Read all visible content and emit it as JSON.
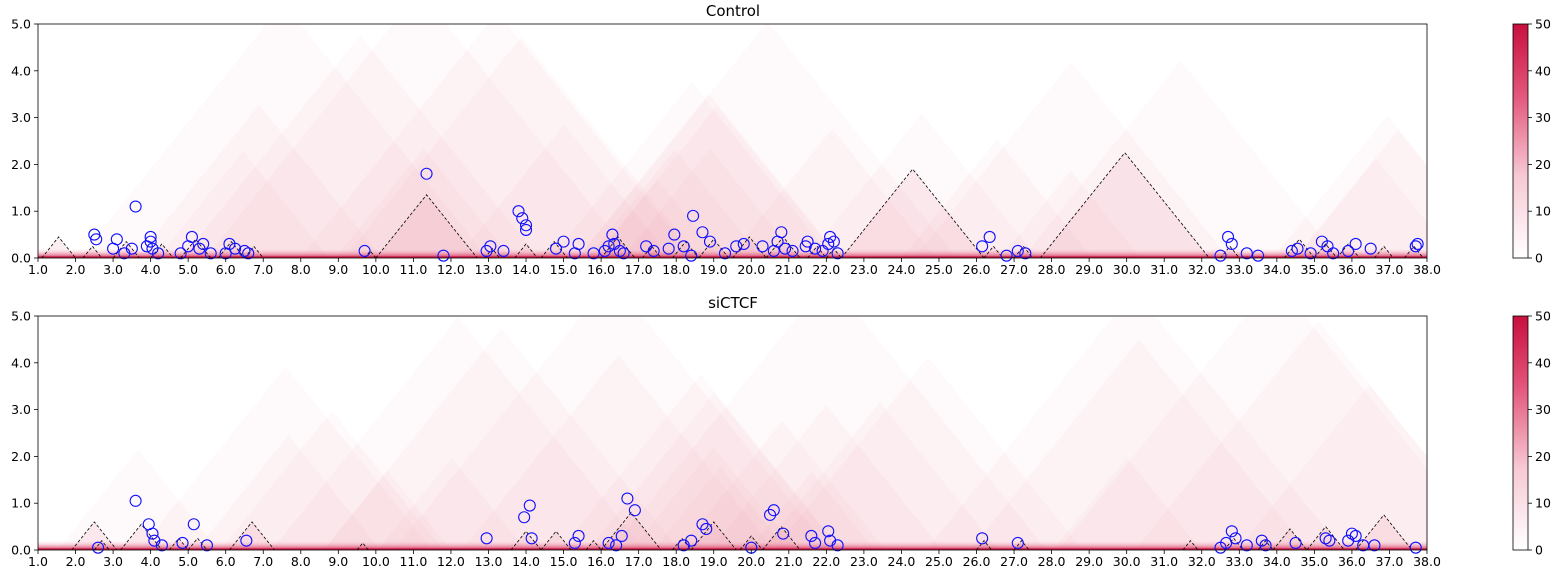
{
  "chart_data": [
    {
      "type": "heatmap",
      "title": "Control",
      "xlim": [
        1.0,
        38.0
      ],
      "ylim": [
        0.0,
        5.0
      ],
      "xticks": [
        "1.0",
        "2.0",
        "3.0",
        "4.0",
        "5.0",
        "6.0",
        "7.0",
        "8.0",
        "9.0",
        "10.0",
        "11.0",
        "12.0",
        "13.0",
        "14.0",
        "15.0",
        "16.0",
        "17.0",
        "18.0",
        "19.0",
        "20.0",
        "21.0",
        "22.0",
        "23.0",
        "24.0",
        "25.0",
        "26.0",
        "27.0",
        "28.0",
        "29.0",
        "30.0",
        "31.0",
        "32.0",
        "33.0",
        "34.0",
        "35.0",
        "36.0",
        "37.0",
        "38.0"
      ],
      "yticks": [
        "0.0",
        "1.0",
        "2.0",
        "3.0",
        "4.0",
        "5.0"
      ],
      "colorbar": {
        "min": 0,
        "max": 50,
        "ticks": [
          "0",
          "10",
          "20",
          "30",
          "40",
          "50"
        ],
        "low_color": "#ffffff",
        "high_color": "#c8103e"
      },
      "tads": [
        [
          1.1,
          2.0
        ],
        [
          2.2,
          2.7
        ],
        [
          3.0,
          3.7
        ],
        [
          4.0,
          4.6
        ],
        [
          4.8,
          5.6
        ],
        [
          5.8,
          6.5
        ],
        [
          6.5,
          7.0
        ],
        [
          9.7,
          10.0
        ],
        [
          10.0,
          12.7
        ],
        [
          12.9,
          13.3
        ],
        [
          13.7,
          14.3
        ],
        [
          14.4,
          15.1
        ],
        [
          16.0,
          16.9
        ],
        [
          17.1,
          17.6
        ],
        [
          17.9,
          18.6
        ],
        [
          18.6,
          19.4
        ],
        [
          19.5,
          20.4
        ],
        [
          20.4,
          21.3
        ],
        [
          21.5,
          22.0
        ],
        [
          22.0,
          22.4
        ],
        [
          22.4,
          26.2
        ],
        [
          26.2,
          26.7
        ],
        [
          27.0,
          27.5
        ],
        [
          27.7,
          32.2
        ],
        [
          32.5,
          33.0
        ],
        [
          34.2,
          35.0
        ],
        [
          35.0,
          35.6
        ],
        [
          35.6,
          36.2
        ],
        [
          36.6,
          37.1
        ],
        [
          37.4,
          37.9
        ]
      ],
      "loops": [
        [
          2.5,
          0.5
        ],
        [
          2.55,
          0.4
        ],
        [
          3.1,
          0.4
        ],
        [
          3.0,
          0.2
        ],
        [
          3.3,
          0.1
        ],
        [
          3.5,
          0.2
        ],
        [
          3.6,
          1.1
        ],
        [
          3.9,
          0.25
        ],
        [
          4.0,
          0.35
        ],
        [
          4.0,
          0.45
        ],
        [
          4.05,
          0.2
        ],
        [
          4.2,
          0.1
        ],
        [
          4.8,
          0.1
        ],
        [
          5.0,
          0.25
        ],
        [
          5.1,
          0.45
        ],
        [
          5.3,
          0.2
        ],
        [
          5.4,
          0.3
        ],
        [
          5.6,
          0.1
        ],
        [
          6.0,
          0.1
        ],
        [
          6.1,
          0.3
        ],
        [
          6.25,
          0.2
        ],
        [
          6.5,
          0.15
        ],
        [
          6.6,
          0.1
        ],
        [
          9.7,
          0.15
        ],
        [
          11.35,
          1.8
        ],
        [
          11.8,
          0.05
        ],
        [
          12.95,
          0.15
        ],
        [
          13.05,
          0.25
        ],
        [
          13.4,
          0.15
        ],
        [
          13.8,
          1.0
        ],
        [
          13.9,
          0.85
        ],
        [
          14.0,
          0.7
        ],
        [
          14.0,
          0.6
        ],
        [
          14.8,
          0.2
        ],
        [
          15.0,
          0.35
        ],
        [
          15.4,
          0.3
        ],
        [
          15.3,
          0.1
        ],
        [
          15.8,
          0.1
        ],
        [
          16.1,
          0.15
        ],
        [
          16.2,
          0.25
        ],
        [
          16.3,
          0.5
        ],
        [
          16.35,
          0.3
        ],
        [
          16.5,
          0.15
        ],
        [
          16.6,
          0.1
        ],
        [
          17.2,
          0.25
        ],
        [
          17.4,
          0.15
        ],
        [
          17.8,
          0.2
        ],
        [
          17.95,
          0.5
        ],
        [
          18.2,
          0.25
        ],
        [
          18.4,
          0.05
        ],
        [
          18.45,
          0.9
        ],
        [
          18.7,
          0.55
        ],
        [
          18.9,
          0.35
        ],
        [
          19.3,
          0.1
        ],
        [
          19.6,
          0.25
        ],
        [
          19.8,
          0.3
        ],
        [
          20.3,
          0.25
        ],
        [
          20.6,
          0.15
        ],
        [
          20.7,
          0.35
        ],
        [
          20.8,
          0.55
        ],
        [
          20.9,
          0.2
        ],
        [
          21.1,
          0.15
        ],
        [
          21.45,
          0.25
        ],
        [
          21.5,
          0.35
        ],
        [
          21.7,
          0.2
        ],
        [
          21.9,
          0.15
        ],
        [
          22.05,
          0.3
        ],
        [
          22.1,
          0.45
        ],
        [
          22.2,
          0.35
        ],
        [
          22.3,
          0.1
        ],
        [
          26.15,
          0.25
        ],
        [
          26.35,
          0.45
        ],
        [
          26.8,
          0.05
        ],
        [
          27.1,
          0.15
        ],
        [
          27.3,
          0.1
        ],
        [
          32.5,
          0.05
        ],
        [
          32.7,
          0.45
        ],
        [
          32.8,
          0.3
        ],
        [
          33.2,
          0.1
        ],
        [
          33.5,
          0.05
        ],
        [
          34.4,
          0.15
        ],
        [
          34.55,
          0.2
        ],
        [
          34.9,
          0.1
        ],
        [
          35.2,
          0.35
        ],
        [
          35.35,
          0.25
        ],
        [
          35.5,
          0.1
        ],
        [
          35.9,
          0.15
        ],
        [
          36.1,
          0.3
        ],
        [
          36.5,
          0.2
        ],
        [
          37.7,
          0.25
        ],
        [
          37.75,
          0.3
        ]
      ]
    },
    {
      "type": "heatmap",
      "title": "siCTCF",
      "xlim": [
        1.0,
        38.0
      ],
      "ylim": [
        0.0,
        5.0
      ],
      "xticks": [
        "1.0",
        "2.0",
        "3.0",
        "4.0",
        "5.0",
        "6.0",
        "7.0",
        "8.0",
        "9.0",
        "10.0",
        "11.0",
        "12.0",
        "13.0",
        "14.0",
        "15.0",
        "16.0",
        "17.0",
        "18.0",
        "19.0",
        "20.0",
        "21.0",
        "22.0",
        "23.0",
        "24.0",
        "25.0",
        "26.0",
        "27.0",
        "28.0",
        "29.0",
        "30.0",
        "31.0",
        "32.0",
        "33.0",
        "34.0",
        "35.0",
        "36.0",
        "37.0",
        "38.0"
      ],
      "yticks": [
        "0.0",
        "1.0",
        "2.0",
        "3.0",
        "4.0",
        "5.0"
      ],
      "colorbar": {
        "min": 0,
        "max": 50,
        "ticks": [
          "0",
          "10",
          "20",
          "30",
          "40",
          "50"
        ],
        "low_color": "#ffffff",
        "high_color": "#c8103e"
      },
      "tads": [
        [
          1.9,
          3.1
        ],
        [
          2.5,
          2.9
        ],
        [
          3.2,
          4.3
        ],
        [
          4.5,
          5.0
        ],
        [
          5.0,
          5.5
        ],
        [
          6.1,
          7.3
        ],
        [
          9.5,
          9.8
        ],
        [
          13.6,
          14.4
        ],
        [
          14.4,
          15.2
        ],
        [
          15.6,
          16.0
        ],
        [
          16.0,
          17.6
        ],
        [
          17.9,
          18.4
        ],
        [
          18.4,
          19.6
        ],
        [
          19.7,
          20.3
        ],
        [
          20.3,
          21.3
        ],
        [
          26.0,
          26.4
        ],
        [
          27.0,
          27.4
        ],
        [
          31.5,
          31.9
        ],
        [
          32.6,
          33.1
        ],
        [
          33.5,
          33.9
        ],
        [
          33.9,
          34.8
        ],
        [
          34.8,
          35.8
        ],
        [
          36.1,
          37.6
        ]
      ],
      "loops": [
        [
          2.6,
          0.05
        ],
        [
          3.6,
          1.05
        ],
        [
          3.95,
          0.55
        ],
        [
          4.05,
          0.35
        ],
        [
          4.1,
          0.2
        ],
        [
          4.3,
          0.1
        ],
        [
          4.85,
          0.15
        ],
        [
          5.15,
          0.55
        ],
        [
          5.5,
          0.1
        ],
        [
          6.55,
          0.2
        ],
        [
          12.95,
          0.25
        ],
        [
          13.95,
          0.7
        ],
        [
          14.1,
          0.95
        ],
        [
          14.15,
          0.25
        ],
        [
          15.3,
          0.15
        ],
        [
          15.4,
          0.3
        ],
        [
          16.2,
          0.15
        ],
        [
          16.4,
          0.1
        ],
        [
          16.55,
          0.3
        ],
        [
          16.7,
          1.1
        ],
        [
          16.9,
          0.85
        ],
        [
          18.2,
          0.1
        ],
        [
          18.4,
          0.2
        ],
        [
          18.7,
          0.55
        ],
        [
          18.8,
          0.45
        ],
        [
          20.0,
          0.05
        ],
        [
          20.5,
          0.75
        ],
        [
          20.6,
          0.85
        ],
        [
          20.85,
          0.35
        ],
        [
          21.6,
          0.3
        ],
        [
          21.7,
          0.15
        ],
        [
          22.05,
          0.4
        ],
        [
          22.1,
          0.2
        ],
        [
          22.3,
          0.1
        ],
        [
          26.15,
          0.25
        ],
        [
          27.1,
          0.15
        ],
        [
          32.5,
          0.05
        ],
        [
          32.65,
          0.15
        ],
        [
          32.8,
          0.4
        ],
        [
          32.9,
          0.25
        ],
        [
          33.2,
          0.1
        ],
        [
          33.6,
          0.2
        ],
        [
          33.7,
          0.1
        ],
        [
          34.5,
          0.15
        ],
        [
          35.3,
          0.25
        ],
        [
          35.4,
          0.2
        ],
        [
          35.9,
          0.2
        ],
        [
          36.0,
          0.35
        ],
        [
          36.1,
          0.3
        ],
        [
          36.3,
          0.1
        ],
        [
          36.6,
          0.1
        ],
        [
          37.7,
          0.05
        ]
      ]
    }
  ]
}
